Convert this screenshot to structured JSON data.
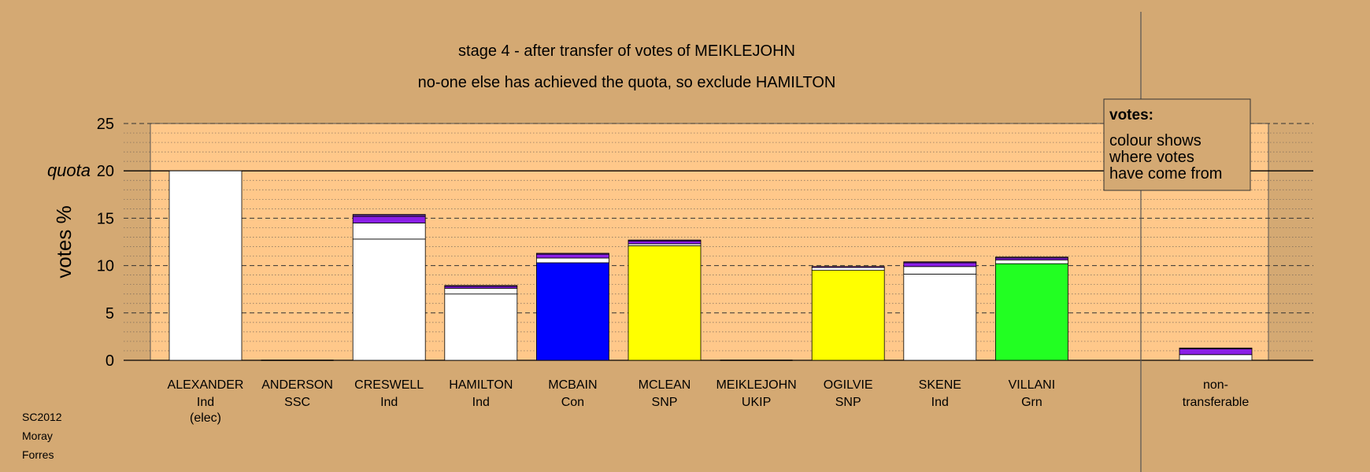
{
  "chart_data": {
    "type": "bar",
    "stacked": true,
    "title": "stage 4 - after transfer of votes of MEIKLEJOHN",
    "subtitle": "no-one else has achieved the quota, so exclude HAMILTON",
    "ylabel": "votes %",
    "ylim": [
      0,
      25
    ],
    "yticks": [
      0,
      5,
      10,
      15,
      20,
      25
    ],
    "quota": 20,
    "quota_label": "quota",
    "grid": true,
    "categories": [
      {
        "name": "ALEXANDER",
        "party": "Ind",
        "note": "(elec)"
      },
      {
        "name": "ANDERSON",
        "party": "SSC",
        "note": ""
      },
      {
        "name": "CRESWELL",
        "party": "Ind",
        "note": ""
      },
      {
        "name": "HAMILTON",
        "party": "Ind",
        "note": ""
      },
      {
        "name": "MCBAIN",
        "party": "Con",
        "note": ""
      },
      {
        "name": "MCLEAN",
        "party": "SNP",
        "note": ""
      },
      {
        "name": "MEIKLEJOHN",
        "party": "UKIP",
        "note": ""
      },
      {
        "name": "OGILVIE",
        "party": "SNP",
        "note": ""
      },
      {
        "name": "SKENE",
        "party": "Ind",
        "note": ""
      },
      {
        "name": "VILLANI",
        "party": "Grn",
        "note": ""
      }
    ],
    "nontransferable_label": [
      "non-",
      "transferable"
    ],
    "bars": [
      [
        {
          "value": 20.0,
          "color": "#ffffff"
        }
      ],
      [],
      [
        {
          "value": 12.8,
          "color": "#ffffff"
        },
        {
          "value": 1.7,
          "color": "#ffffff"
        },
        {
          "value": 0.7,
          "color": "#8a1ee6"
        },
        {
          "value": 0.2,
          "color": "#5a2a8a"
        }
      ],
      [
        {
          "value": 7.0,
          "color": "#ffffff"
        },
        {
          "value": 0.6,
          "color": "#ffffff"
        },
        {
          "value": 0.2,
          "color": "#8a1ee6"
        },
        {
          "value": 0.1,
          "color": "#5a2a8a"
        }
      ],
      [
        {
          "value": 10.3,
          "color": "#0000ff"
        },
        {
          "value": 0.5,
          "color": "#ffffff"
        },
        {
          "value": 0.4,
          "color": "#8a1ee6"
        },
        {
          "value": 0.1,
          "color": "#5a2a8a"
        }
      ],
      [
        {
          "value": 12.1,
          "color": "#ffff00"
        },
        {
          "value": 0.2,
          "color": "#ffffff"
        },
        {
          "value": 0.3,
          "color": "#8a1ee6"
        },
        {
          "value": 0.1,
          "color": "#5a2a8a"
        }
      ],
      [],
      [
        {
          "value": 9.5,
          "color": "#ffff00"
        },
        {
          "value": 0.3,
          "color": "#ffffff"
        },
        {
          "value": 0.1,
          "color": "#8a1ee6"
        }
      ],
      [
        {
          "value": 9.1,
          "color": "#ffffff"
        },
        {
          "value": 0.8,
          "color": "#ffffff"
        },
        {
          "value": 0.4,
          "color": "#8a1ee6"
        },
        {
          "value": 0.1,
          "color": "#5a2a8a"
        }
      ],
      [
        {
          "value": 10.2,
          "color": "#22ff22"
        },
        {
          "value": 0.4,
          "color": "#ffffff"
        },
        {
          "value": 0.2,
          "color": "#8a1ee6"
        },
        {
          "value": 0.1,
          "color": "#5a2a8a"
        }
      ]
    ],
    "nontransferable": [
      {
        "value": 0.6,
        "color": "#ffffff"
      },
      {
        "value": 0.6,
        "color": "#8a1ee6"
      },
      {
        "value": 0.1,
        "color": "#5a2a8a"
      }
    ],
    "legend": {
      "title": "votes:",
      "lines": [
        "colour shows",
        "where votes",
        "have come from"
      ]
    },
    "colors": {
      "background": "#d4a973",
      "plot_background": "#ffc88a",
      "plot_side_shade": "#e0b07a"
    }
  },
  "footer": {
    "line1": "SC2012",
    "line2": "Moray",
    "line3": "Forres"
  }
}
